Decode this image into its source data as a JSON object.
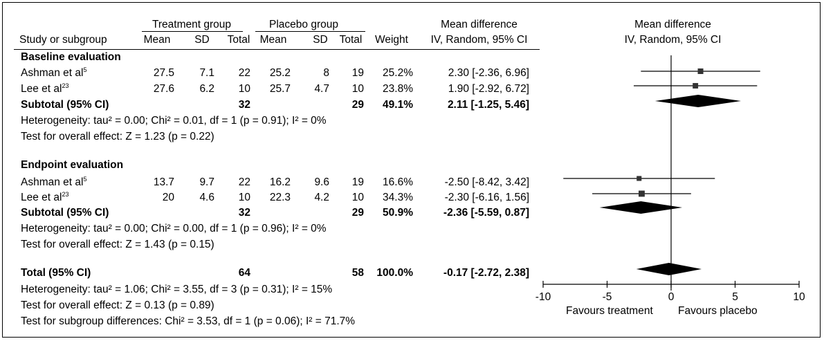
{
  "header": {
    "treatment_group": "Treatment group",
    "placebo_group": "Placebo group",
    "mean_difference_left_1": "Mean difference",
    "mean_difference_left_2": "IV, Random, 95%  CI",
    "mean_difference_right_1": "Mean difference",
    "mean_difference_right_2": "IV, Random, 95%  CI",
    "study": "Study or subgroup",
    "mean1": "Mean",
    "sd1": "SD",
    "total1": "Total",
    "mean2": "Mean",
    "sd2": "SD",
    "total2": "Total",
    "weight": "Weight"
  },
  "groups": [
    {
      "title": "Baseline evaluation",
      "studies": [
        {
          "name": "Ashman et al",
          "ref": "5",
          "mean1": "27.5",
          "sd1": "7.1",
          "n1": "22",
          "mean2": "25.2",
          "sd2": "8",
          "n2": "19",
          "weight": "25.2%",
          "ci": "2.30 [-2.36, 6.96]"
        },
        {
          "name": "Lee et al",
          "ref": "23",
          "mean1": "27.6",
          "sd1": "6.2",
          "n1": "10",
          "mean2": "25.7",
          "sd2": "4.7",
          "n2": "10",
          "weight": "23.8%",
          "ci": "1.90 [-2.92, 6.72]"
        }
      ],
      "subtotal": {
        "label": "Subtotal (95% CI)",
        "n1": "32",
        "n2": "29",
        "weight": "49.1%",
        "ci": "2.11 [-1.25, 5.46]"
      },
      "heterogeneity": "Heterogeneity: tau² = 0.00; Chi² = 0.01, df = 1 (p = 0.91); I² = 0%",
      "overall": "Test for overall effect: Z = 1.23 (p = 0.22)"
    },
    {
      "title": "Endpoint evaluation",
      "studies": [
        {
          "name": "Ashman et al",
          "ref": "5",
          "mean1": "13.7",
          "sd1": "9.7",
          "n1": "22",
          "mean2": "16.2",
          "sd2": "9.6",
          "n2": "19",
          "weight": "16.6%",
          "ci": "-2.50 [-8.42, 3.42]"
        },
        {
          "name": "Lee et al",
          "ref": "23",
          "mean1": "20",
          "sd1": "4.6",
          "n1": "10",
          "mean2": "22.3",
          "sd2": "4.2",
          "n2": "10",
          "weight": "34.3%",
          "ci": "-2.30 [-6.16, 1.56]"
        }
      ],
      "subtotal": {
        "label": "Subtotal (95% CI)",
        "n1": "32",
        "n2": "29",
        "weight": "50.9%",
        "ci": "-2.36 [-5.59, 0.87]"
      },
      "heterogeneity": "Heterogeneity: tau² = 0.00; Chi² = 0.00, df = 1 (p = 0.96); I² = 0%",
      "overall": "Test for overall effect: Z = 1.43 (p = 0.15)"
    }
  ],
  "total": {
    "label": "Total (95% CI)",
    "n1": "64",
    "n2": "58",
    "weight": "100.0%",
    "ci": "-0.17 [-2.72, 2.38]",
    "heterogeneity": "Heterogeneity: tau² = 1.06; Chi² = 3.55, df = 3 (p = 0.31); I² = 15%",
    "overall": "Test for overall effect: Z = 0.13 (p = 0.89)",
    "subgroup": "Test for subgroup differences: Chi² = 3.53, df = 1 (p = 0.06); I² = 71.7%"
  },
  "axis": {
    "favours_left": "Favours treatment",
    "favours_right": "Favours placebo"
  },
  "chart_data": {
    "type": "forest",
    "xlim": [
      -10,
      10
    ],
    "ticks": [
      -10,
      -5,
      0,
      5,
      10
    ],
    "tick_labels": [
      "-10",
      "-5",
      "0",
      "5",
      "10"
    ],
    "rows": [
      {
        "kind": "study",
        "group": "Baseline evaluation",
        "label": "Ashman et al",
        "mean": 2.3,
        "lo": -2.36,
        "hi": 6.96,
        "weight": 25.2
      },
      {
        "kind": "study",
        "group": "Baseline evaluation",
        "label": "Lee et al",
        "mean": 1.9,
        "lo": -2.92,
        "hi": 6.72,
        "weight": 23.8
      },
      {
        "kind": "subtotal",
        "group": "Baseline evaluation",
        "label": "Subtotal (95% CI)",
        "mean": 2.11,
        "lo": -1.25,
        "hi": 5.46,
        "weight": 49.1
      },
      {
        "kind": "study",
        "group": "Endpoint evaluation",
        "label": "Ashman et al",
        "mean": -2.5,
        "lo": -8.42,
        "hi": 3.42,
        "weight": 16.6
      },
      {
        "kind": "study",
        "group": "Endpoint evaluation",
        "label": "Lee et al",
        "mean": -2.3,
        "lo": -6.16,
        "hi": 1.56,
        "weight": 34.3
      },
      {
        "kind": "subtotal",
        "group": "Endpoint evaluation",
        "label": "Subtotal (95% CI)",
        "mean": -2.36,
        "lo": -5.59,
        "hi": 0.87,
        "weight": 50.9
      },
      {
        "kind": "total",
        "group": "",
        "label": "Total (95% CI)",
        "mean": -0.17,
        "lo": -2.72,
        "hi": 2.38,
        "weight": 100.0
      }
    ]
  }
}
